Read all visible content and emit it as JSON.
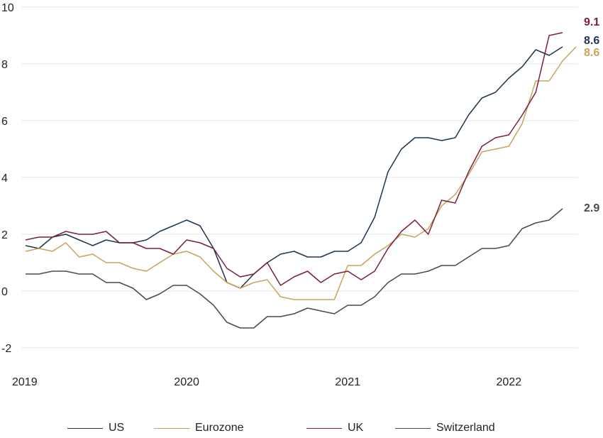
{
  "chart_data": {
    "type": "line",
    "title": "",
    "xlabel": "",
    "ylabel": "",
    "ylim": [
      -2,
      10
    ],
    "yticks": [
      -2,
      0,
      2,
      4,
      6,
      8,
      10
    ],
    "xticks": [
      {
        "label": "2019",
        "value": 2019.0
      },
      {
        "label": "2020",
        "value": 2020.0
      },
      {
        "label": "2021",
        "value": 2021.0
      },
      {
        "label": "2022",
        "value": 2022.0
      }
    ],
    "grid": "horizontal",
    "legend_position": "bottom",
    "x": [
      2019.0,
      2019.083,
      2019.167,
      2019.25,
      2019.333,
      2019.417,
      2019.5,
      2019.583,
      2019.667,
      2019.75,
      2019.833,
      2019.917,
      2020.0,
      2020.083,
      2020.167,
      2020.25,
      2020.333,
      2020.417,
      2020.5,
      2020.583,
      2020.667,
      2020.75,
      2020.833,
      2020.917,
      2021.0,
      2021.083,
      2021.167,
      2021.25,
      2021.333,
      2021.417,
      2021.5,
      2021.583,
      2021.667,
      2021.75,
      2021.833,
      2021.917,
      2022.0,
      2022.083,
      2022.167,
      2022.25,
      2022.333,
      2022.417
    ],
    "series": [
      {
        "name": "US",
        "color": "#1e3450",
        "values": [
          1.6,
          1.5,
          1.9,
          2.0,
          1.8,
          1.6,
          1.8,
          1.7,
          1.7,
          1.8,
          2.1,
          2.3,
          2.5,
          2.3,
          1.5,
          0.3,
          0.1,
          0.6,
          1.0,
          1.3,
          1.4,
          1.2,
          1.2,
          1.4,
          1.4,
          1.7,
          2.6,
          4.2,
          5.0,
          5.4,
          5.4,
          5.3,
          5.4,
          6.2,
          6.8,
          7.0,
          7.5,
          7.9,
          8.5,
          8.3,
          8.6,
          null
        ],
        "end_label": "8.6"
      },
      {
        "name": "Eurozone",
        "color": "#c9a25e",
        "values": [
          1.4,
          1.5,
          1.4,
          1.7,
          1.2,
          1.3,
          1.0,
          1.0,
          0.8,
          0.7,
          1.0,
          1.3,
          1.4,
          1.2,
          0.7,
          0.3,
          0.1,
          0.3,
          0.4,
          -0.2,
          -0.3,
          -0.3,
          -0.3,
          -0.3,
          0.9,
          0.9,
          1.3,
          1.6,
          2.0,
          1.9,
          2.2,
          3.0,
          3.4,
          4.1,
          4.9,
          5.0,
          5.1,
          5.9,
          7.4,
          7.4,
          8.1,
          8.6
        ],
        "end_label": "8.6"
      },
      {
        "name": "UK",
        "color": "#7a1f3d",
        "values": [
          1.8,
          1.9,
          1.9,
          2.1,
          2.0,
          2.0,
          2.1,
          1.7,
          1.7,
          1.5,
          1.5,
          1.3,
          1.8,
          1.7,
          1.5,
          0.8,
          0.5,
          0.6,
          1.0,
          0.2,
          0.5,
          0.7,
          0.3,
          0.6,
          0.7,
          0.4,
          0.7,
          1.5,
          2.1,
          2.5,
          2.0,
          3.2,
          3.1,
          4.2,
          5.1,
          5.4,
          5.5,
          6.2,
          7.0,
          9.0,
          9.1,
          null
        ],
        "end_label": "9.1"
      },
      {
        "name": "Switzerland",
        "color": "#4a4a4a",
        "values": [
          0.6,
          0.6,
          0.7,
          0.7,
          0.6,
          0.6,
          0.3,
          0.3,
          0.1,
          -0.3,
          -0.1,
          0.2,
          0.2,
          -0.1,
          -0.5,
          -1.1,
          -1.3,
          -1.3,
          -0.9,
          -0.9,
          -0.8,
          -0.6,
          -0.7,
          -0.8,
          -0.5,
          -0.5,
          -0.2,
          0.3,
          0.6,
          0.6,
          0.7,
          0.9,
          0.9,
          1.2,
          1.5,
          1.5,
          1.6,
          2.2,
          2.4,
          2.5,
          2.9,
          null
        ],
        "end_label": "2.9"
      }
    ]
  }
}
